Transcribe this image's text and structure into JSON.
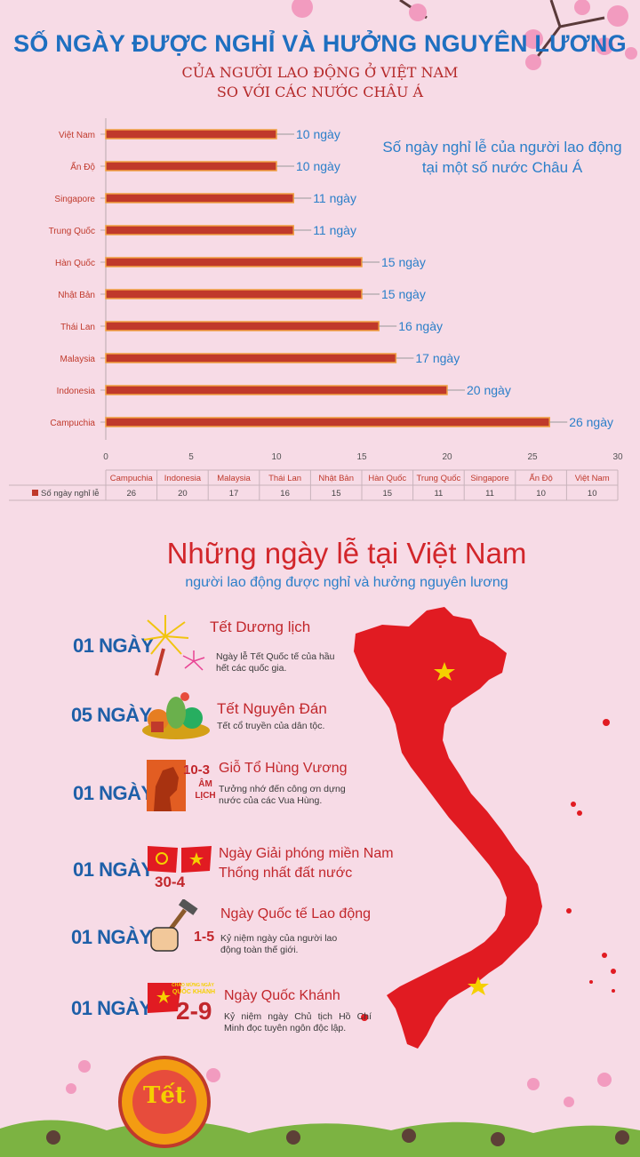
{
  "header": {
    "title": "SỐ NGÀY ĐƯỢC NGHỈ VÀ HƯỞNG NGUYÊN LƯƠNG",
    "subtitle_line1": "CỦA NGƯỜI LAO ĐỘNG Ở VIỆT NAM",
    "subtitle_line2": "SO VỚI CÁC NƯỚC CHÂU Á"
  },
  "chart_note": "Số ngày nghỉ lễ của người lao động tại một số nước Châu Á",
  "chart_data": {
    "type": "bar",
    "orientation": "horizontal",
    "categories": [
      "Việt Nam",
      "Ấn Độ",
      "Singapore",
      "Trung Quốc",
      "Hàn Quốc",
      "Nhật Bản",
      "Thái Lan",
      "Malaysia",
      "Indonesia",
      "Campuchia"
    ],
    "values": [
      10,
      10,
      11,
      11,
      15,
      15,
      16,
      17,
      20,
      26
    ],
    "value_labels": [
      "10 ngày",
      "10 ngày",
      "11 ngày",
      "11 ngày",
      "15 ngày",
      "15 ngày",
      "16 ngày",
      "17 ngày",
      "20 ngày",
      "26 ngày"
    ],
    "xlim": [
      0,
      30
    ],
    "xticks": [
      0,
      5,
      10,
      15,
      20,
      25,
      30
    ],
    "bar_color": "#c0392b",
    "series": [
      {
        "name": "Số ngày nghỉ lễ",
        "values": [
          10,
          10,
          11,
          11,
          15,
          15,
          16,
          17,
          20,
          26
        ]
      }
    ],
    "data_table": {
      "series_label": "Số ngày nghỉ lễ",
      "categories": [
        "Campuchia",
        "Indonesia",
        "Malaysia",
        "Thái Lan",
        "Nhật Bản",
        "Hàn Quốc",
        "Trung Quốc",
        "Singapore",
        "Ấn Độ",
        "Việt Nam"
      ],
      "values": [
        "26",
        "20",
        "17",
        "16",
        "15",
        "15",
        "11",
        "11",
        "10",
        "10"
      ]
    }
  },
  "section2": {
    "title": "Những ngày lễ tại Việt Nam",
    "subtitle": "người lao động được nghỉ và hưởng nguyên lương"
  },
  "holidays": [
    {
      "days": "01 NGÀY",
      "name": "Tết Dương lịch",
      "desc": "Ngày lễ Tết Quốc tế của hầu hết các quốc gia.",
      "icon": "fireworks-icon"
    },
    {
      "days": "05 NGÀY",
      "name": "Tết Nguyên Đán",
      "desc": "Tết cổ truyền của dân tộc.",
      "icon": "fruit-tray-icon"
    },
    {
      "days": "01 NGÀY",
      "name": "Giỗ Tổ Hùng Vương",
      "badge": "10-3",
      "badge2": "ÂM LỊCH",
      "desc": "Tưởng nhớ đến công ơn dựng nước của các Vua Hùng.",
      "icon": "hung-king-icon"
    },
    {
      "days": "01 NGÀY",
      "name": "Ngày Giải phóng miền Nam",
      "name2": "Thống nhất đất nước",
      "badge": "30-4",
      "icon": "flags-icon"
    },
    {
      "days": "01 NGÀY",
      "name": "Ngày Quốc tế Lao động",
      "badge": "1-5",
      "desc": "Kỷ niệm ngày của người lao động toàn thế giới.",
      "icon": "hammer-fist-icon"
    },
    {
      "days": "01 NGÀY",
      "name": "Ngày Quốc Khánh",
      "badge": "2-9",
      "badge_top": "CHÀO MỪNG NGÀY",
      "badge_mid": "QUỐC KHÁNH",
      "desc": "Kỷ niệm ngày Chủ tịch Hồ Chí Minh đọc tuyên ngôn độc lập.",
      "icon": "national-day-icon"
    }
  ],
  "decor": {
    "tet_badge": "Tết",
    "colors": {
      "title_blue": "#1e6fc0",
      "red": "#d2262b",
      "map_red": "#e11b22",
      "background": "#f7dbe6",
      "star": "#f5d000"
    }
  }
}
